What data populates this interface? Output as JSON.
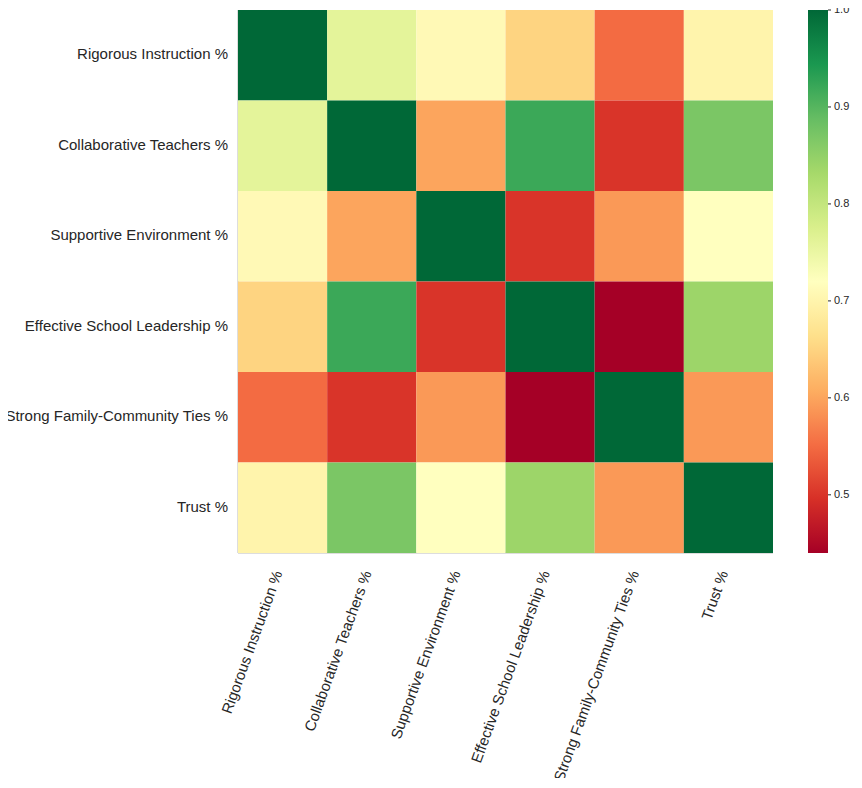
{
  "chart_data": {
    "type": "heatmap",
    "categories": [
      "Rigorous Instruction %",
      "Collaborative Teachers %",
      "Supportive Environment %",
      "Effective School Leadership %",
      "Strong Family-Community Ties %",
      "Trust %"
    ],
    "values": [
      [
        1.0,
        0.76,
        0.71,
        0.65,
        0.55,
        0.7
      ],
      [
        0.76,
        1.0,
        0.6,
        0.92,
        0.5,
        0.87
      ],
      [
        0.71,
        0.6,
        1.0,
        0.5,
        0.59,
        0.72
      ],
      [
        0.65,
        0.92,
        0.5,
        1.0,
        0.44,
        0.84
      ],
      [
        0.55,
        0.5,
        0.59,
        0.44,
        1.0,
        0.59
      ],
      [
        0.7,
        0.87,
        0.72,
        0.84,
        0.59,
        1.0
      ]
    ],
    "colorbar_range": [
      0.44,
      1.0
    ],
    "colorbar_ticks": [
      0.5,
      0.6,
      0.7,
      0.8,
      0.9,
      {
        "value": 1.0,
        "label": "1.0"
      }
    ]
  }
}
